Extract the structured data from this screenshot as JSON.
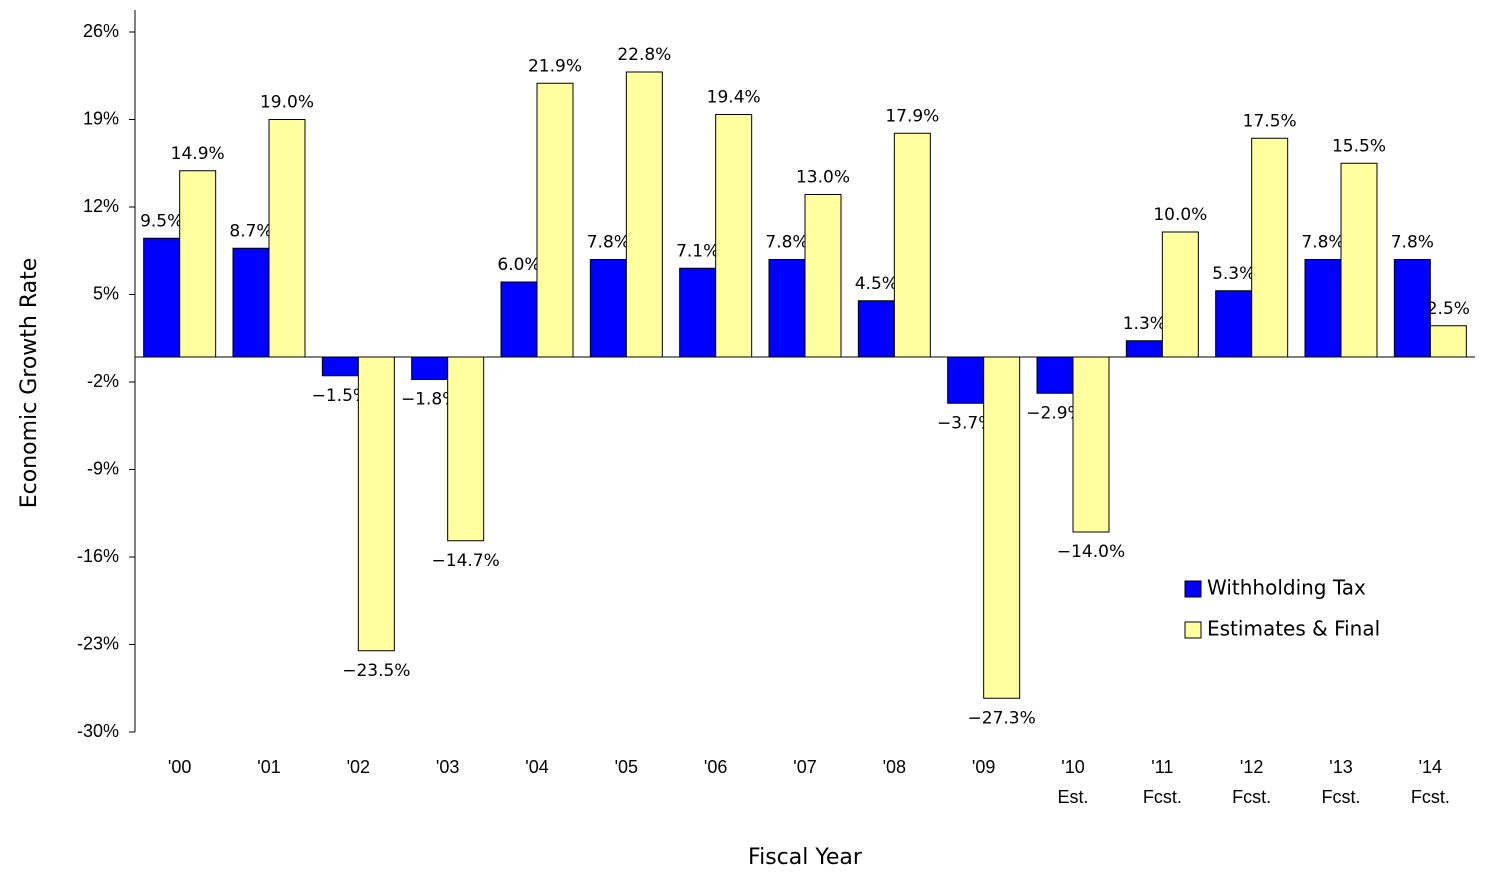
{
  "chart_data": {
    "type": "bar",
    "x_label": "Fiscal Year",
    "y_label": "Economic Growth Rate",
    "categories": [
      "'00",
      "'01",
      "'02",
      "'03",
      "'04",
      "'05",
      "'06",
      "'07",
      "'08",
      "'09",
      "'10\nEst.",
      "'11\nFcst.",
      "'12\nFcst.",
      "'13\nFcst.",
      "'14\nFcst."
    ],
    "series": [
      {
        "name": "Withholding Tax",
        "color": "#0000ff",
        "values": [
          9.5,
          8.7,
          -1.5,
          -1.8,
          6.0,
          7.8,
          7.1,
          7.8,
          4.5,
          -3.7,
          -2.9,
          1.3,
          5.3,
          7.8,
          7.8
        ],
        "value_labels": [
          "9.5%",
          "8.7%",
          "−1.5%",
          "−1.8%",
          "6.0%",
          "7.8%",
          "7.1%",
          "7.8%",
          "4.5%",
          "−3.7%",
          "−2.9%",
          "1.3%",
          "5.3%",
          "7.8%",
          "7.8%"
        ]
      },
      {
        "name": "Estimates & Final",
        "color": "#ffffa0",
        "values": [
          14.9,
          19.0,
          -23.5,
          -14.7,
          21.9,
          22.8,
          19.4,
          13.0,
          17.9,
          -27.3,
          -14.0,
          10.0,
          17.5,
          15.5,
          2.5
        ],
        "value_labels": [
          "14.9%",
          "19.0%",
          "−23.5%",
          "−14.7%",
          "21.9%",
          "22.8%",
          "19.4%",
          "13.0%",
          "17.9%",
          "−27.3%",
          "−14.0%",
          "10.0%",
          "17.5%",
          "15.5%",
          "2.5%"
        ]
      }
    ],
    "ylim": [
      -30,
      26
    ],
    "yticks": [
      {
        "value": -30,
        "label": "-30%"
      },
      {
        "value": -23,
        "label": "-23%"
      },
      {
        "value": -16,
        "label": "-16%"
      },
      {
        "value": -9,
        "label": "-9%"
      },
      {
        "value": -2,
        "label": "-2%"
      },
      {
        "value": 5,
        "label": "5%"
      },
      {
        "value": 12,
        "label": "12%"
      },
      {
        "value": 19,
        "label": "19%"
      },
      {
        "value": 26,
        "label": "26%"
      }
    ],
    "legend": "lower-right"
  }
}
